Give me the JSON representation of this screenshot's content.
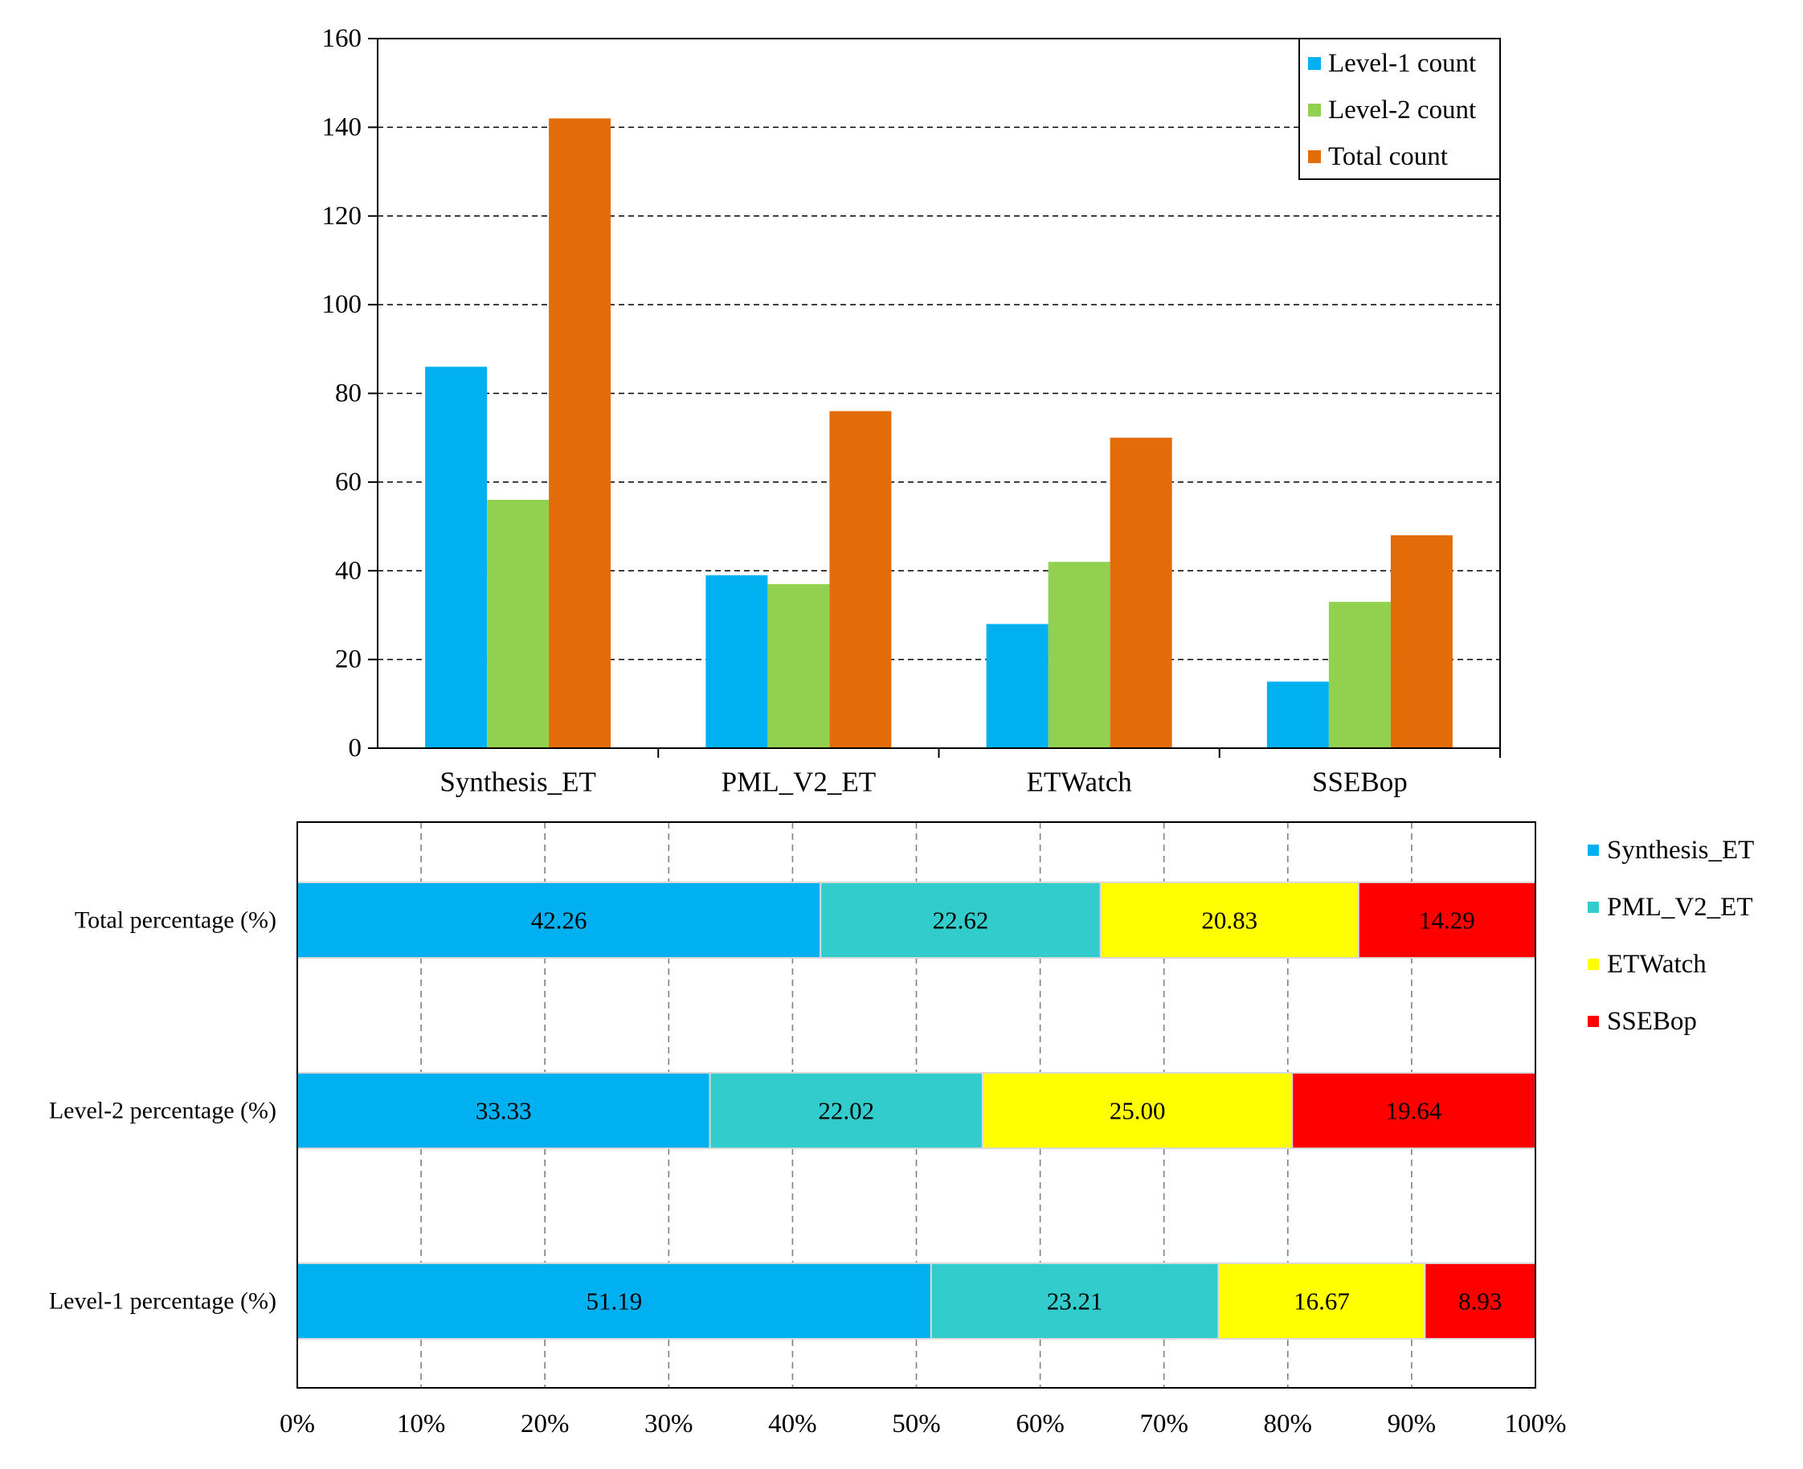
{
  "chart_data": [
    {
      "type": "bar",
      "title": "",
      "xlabel": "",
      "ylabel": "",
      "ylim": [
        0,
        160
      ],
      "yticks": [
        "0",
        "20",
        "40",
        "60",
        "80",
        "100",
        "120",
        "140",
        "160"
      ],
      "grid": "horizontal dashed",
      "legend_position": "top-right",
      "categories": [
        "Synthesis_ET",
        "PML_V2_ET",
        "ETWatch",
        "SSEBop"
      ],
      "series": [
        {
          "name": "Level-1 count",
          "color": "#00b0f0",
          "values": [
            86,
            39,
            28,
            15
          ]
        },
        {
          "name": "Level-2 count",
          "color": "#92d050",
          "values": [
            56,
            37,
            42,
            33
          ]
        },
        {
          "name": "Total count",
          "color": "#e36c09",
          "values": [
            142,
            76,
            70,
            48
          ]
        }
      ]
    },
    {
      "type": "bar",
      "orientation": "horizontal",
      "stacked": "percent",
      "title": "",
      "xlim": [
        0,
        100
      ],
      "xticks": [
        "0%",
        "10%",
        "20%",
        "30%",
        "40%",
        "50%",
        "60%",
        "70%",
        "80%",
        "90%",
        "100%"
      ],
      "grid": "vertical dashed",
      "legend_position": "right",
      "categories": [
        "Total percentage (%)",
        "Level-2 percentage (%)",
        "Level-1 percentage (%)"
      ],
      "series": [
        {
          "name": "Synthesis_ET",
          "color": "#00b0f0",
          "values": [
            42.26,
            33.33,
            51.19
          ],
          "labels": [
            "42.26",
            "33.33",
            "51.19"
          ]
        },
        {
          "name": "PML_V2_ET",
          "color": "#33cccc",
          "values": [
            22.62,
            22.02,
            23.21
          ],
          "labels": [
            "22.62",
            "22.02",
            "23.21"
          ]
        },
        {
          "name": "ETWatch",
          "color": "#ffff00",
          "values": [
            20.83,
            25.0,
            16.67
          ],
          "labels": [
            "20.83",
            "25.00",
            "16.67"
          ]
        },
        {
          "name": "SSEBop",
          "color": "#ff0000",
          "values": [
            14.29,
            19.64,
            8.93
          ],
          "labels": [
            "14.29",
            "19.64",
            "8.93"
          ]
        }
      ]
    }
  ]
}
